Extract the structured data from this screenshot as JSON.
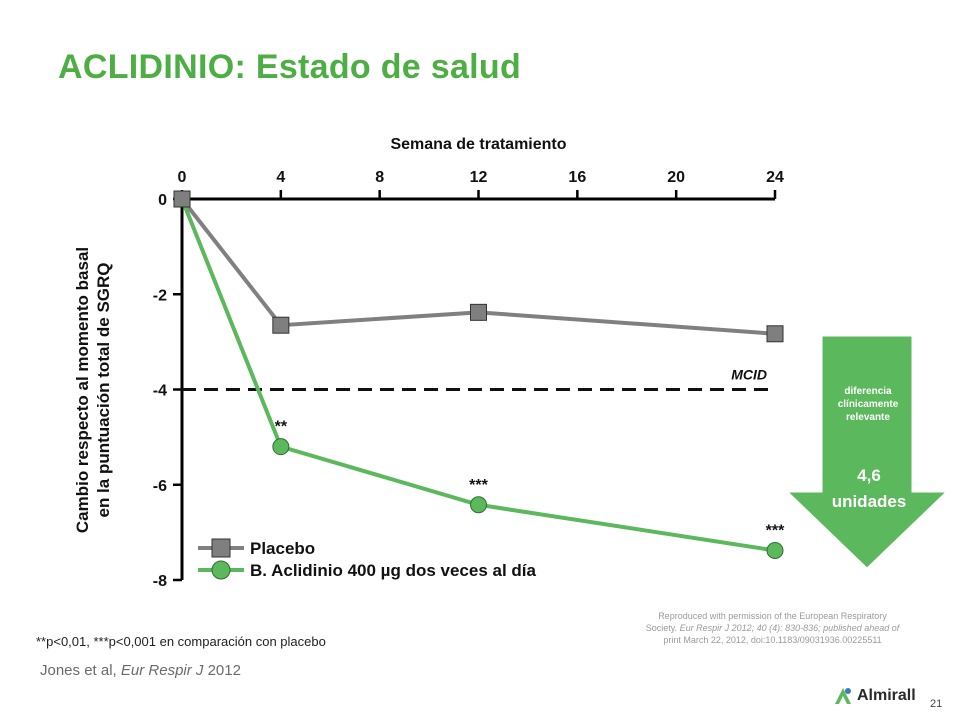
{
  "title": "ACLIDINIO: Estado de salud",
  "chart_data": {
    "type": "line",
    "xlabel": "Semana de tratamiento",
    "ylabel_line1": "Cambio respecto al momento basal",
    "ylabel_line2": "en la puntuación total de SGRQ",
    "x_ticks": [
      0,
      4,
      8,
      12,
      16,
      20,
      24
    ],
    "y_ticks": [
      0,
      -2,
      -4,
      -6,
      -8
    ],
    "xlim": [
      0,
      24
    ],
    "ylim": [
      -8,
      0
    ],
    "x_axis_position": "top",
    "series": [
      {
        "name": "Placebo",
        "marker": "square",
        "color": "#808080",
        "x": [
          0,
          4,
          12,
          24
        ],
        "y": [
          0,
          -2.65,
          -2.38,
          -2.83
        ]
      },
      {
        "name": "B. Aclidinio 400 µg dos veces al día",
        "marker": "circle",
        "color": "#5cb85c",
        "x": [
          0,
          4,
          12,
          24
        ],
        "y": [
          0,
          -5.2,
          -6.42,
          -7.38
        ],
        "point_labels": [
          "",
          "**",
          "***",
          "***"
        ]
      }
    ],
    "reference_line": {
      "y": -4,
      "label": "MCID",
      "style": "dashed"
    },
    "legend_placement": "bottom-left"
  },
  "arrow_callout": {
    "small_line1": "diferencia",
    "small_line2": "clínicamente",
    "small_line3": "relevante",
    "big_line1": "4,6",
    "big_line2": "unidades",
    "color": "#5cb85c"
  },
  "significance_note": "**p<0,01, ***p<0,001 en comparación con placebo",
  "citation_authors": "Jones et al, ",
  "citation_journal": "Eur Respir J",
  "citation_year": " 2012",
  "reproduction": {
    "line1": "Reproduced with permission of the European Respiratory",
    "line2_prefix": "Society. ",
    "line2_journal": "Eur Respir J 2012; 40 (4): 830-836; published ahead of",
    "line3": "print March 22, 2012, doi:10.1183/09031936.00225511"
  },
  "logo_text": "Almirall",
  "page_number": "21"
}
